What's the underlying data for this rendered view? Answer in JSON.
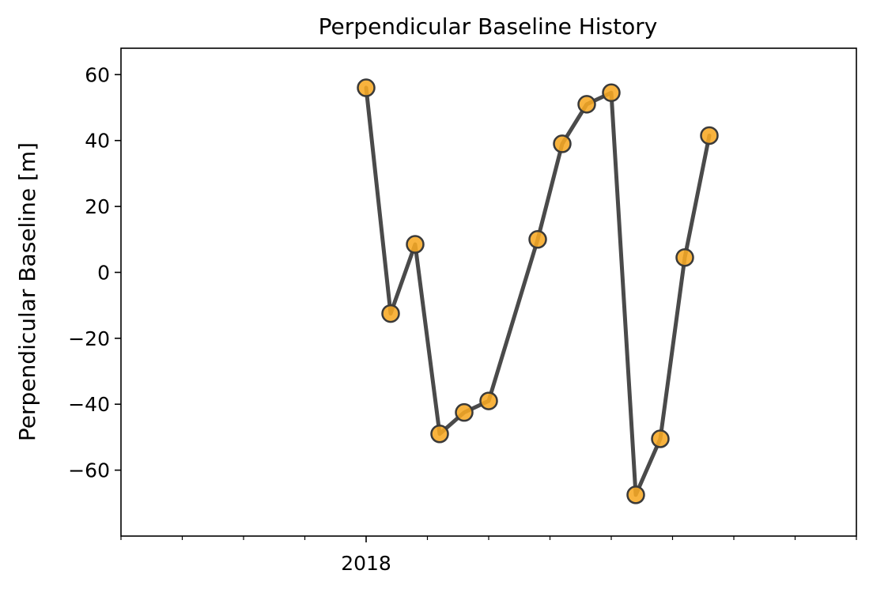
{
  "chart_data": {
    "type": "line",
    "title": "Perpendicular Baseline History",
    "xlabel": "",
    "ylabel": "Perpendicular Baseline [m]",
    "x_tick_labels": [
      "2018"
    ],
    "y_ticks": [
      60,
      40,
      20,
      0,
      -20,
      -40,
      -60
    ],
    "y_tick_labels": [
      "60",
      "40",
      "20",
      "0",
      "−20",
      "−40",
      "−60"
    ],
    "ylim": [
      -80,
      68
    ],
    "x_ticks_index": [
      -4,
      -3,
      -2,
      -1,
      0,
      1,
      2,
      3,
      4,
      5,
      6,
      7,
      8
    ],
    "x_major_tick_index": 0,
    "x_range_index": [
      -4,
      8
    ],
    "series": [
      {
        "x_index": [
          0,
          0.4,
          0.8,
          1.2,
          1.6,
          2.0,
          2.8,
          3.2,
          3.6,
          4.0,
          4.4,
          4.8,
          5.2,
          5.6
        ],
        "values": [
          56,
          -12.5,
          8.5,
          -49,
          -42.5,
          -39,
          10,
          39,
          51,
          54.5,
          -67.5,
          -50.5,
          4.5,
          41.5
        ]
      }
    ],
    "colors": {
      "line": "#404040",
      "marker_fill": "#f7a823",
      "marker_edge": "#3a3a3a"
    },
    "grid": false
  }
}
